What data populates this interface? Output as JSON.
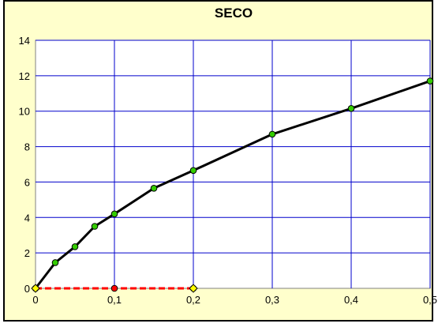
{
  "chart_data": {
    "type": "line",
    "title": "SECO",
    "xlabel": "",
    "ylabel": "",
    "xlim": [
      0,
      0.5
    ],
    "ylim": [
      0,
      14
    ],
    "x_ticks": [
      0,
      0.1,
      0.2,
      0.3,
      0.4,
      0.5
    ],
    "x_tick_labels": [
      "0",
      "0,1",
      "0,2",
      "0,3",
      "0,4",
      "0,5"
    ],
    "y_ticks": [
      0,
      2,
      4,
      6,
      8,
      10,
      12,
      14
    ],
    "y_tick_labels": [
      "0",
      "2",
      "4",
      "6",
      "8",
      "10",
      "12",
      "14"
    ],
    "grid": true,
    "legend": "none",
    "series": [
      {
        "line_color": "#000000",
        "line_style": "solid",
        "marker_color": "#33cc00",
        "points": [
          {
            "x": 0,
            "y": 0
          },
          {
            "x": 0.025,
            "y": 1.45
          },
          {
            "x": 0.05,
            "y": 2.35
          },
          {
            "x": 0.075,
            "y": 3.5
          },
          {
            "x": 0.1,
            "y": 4.2
          },
          {
            "x": 0.15,
            "y": 5.65
          },
          {
            "x": 0.2,
            "y": 6.65
          },
          {
            "x": 0.3,
            "y": 8.7
          },
          {
            "x": 0.4,
            "y": 10.15
          },
          {
            "x": 0.5,
            "y": 11.7
          }
        ]
      },
      {
        "line_color": "#ff0000",
        "line_style": "dashed",
        "marker_color": "#ff0000",
        "points": [
          {
            "x": 0,
            "y": 0
          },
          {
            "x": 0.1,
            "y": 0
          },
          {
            "x": 0.2,
            "y": 0
          }
        ]
      }
    ],
    "extra_markers": [
      {
        "x": 0,
        "y": 0,
        "color": "#ffff00"
      },
      {
        "x": 0.2,
        "y": 0,
        "color": "#ffff00"
      }
    ],
    "colors": {
      "background": "#ffffcc",
      "plot_border": "#808080",
      "grid": "#0000cc"
    }
  }
}
